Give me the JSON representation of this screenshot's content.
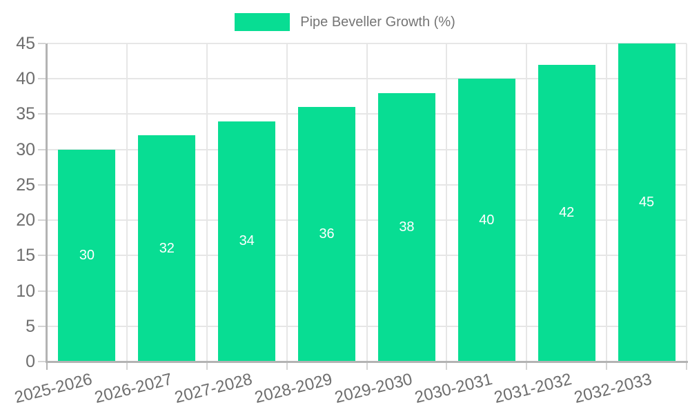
{
  "legend": {
    "label": "Pipe Beveller Growth (%)"
  },
  "chart_data": {
    "type": "bar",
    "title": "Pipe Beveller Growth (%)",
    "categories": [
      "2025-2026",
      "2026-2027",
      "2027-2028",
      "2028-2029",
      "2029-2030",
      "2030-2031",
      "2031-2032",
      "2032-2033"
    ],
    "series": [
      {
        "name": "Pipe Beveller Growth (%)",
        "values": [
          30,
          32,
          34,
          36,
          38,
          40,
          42,
          45
        ]
      }
    ],
    "value_labels": [
      "30",
      "32",
      "34",
      "36",
      "38",
      "40",
      "42",
      "45"
    ],
    "xlabel": "",
    "ylabel": "",
    "ylim": [
      0,
      45
    ],
    "ytick_step": 5,
    "yticks": [
      0,
      5,
      10,
      15,
      20,
      25,
      30,
      35,
      40,
      45
    ],
    "grid": true,
    "legend_position": "top-center"
  },
  "colors": {
    "bar": "#08dd93",
    "value_label": "#ffffff",
    "axis_text": "#6e6e6e",
    "legend_text": "#757575",
    "grid_line": "#e6e6e6",
    "tick_line": "#d4d4d4",
    "axis_line": "#b3b3b3",
    "background": "#ffffff"
  }
}
